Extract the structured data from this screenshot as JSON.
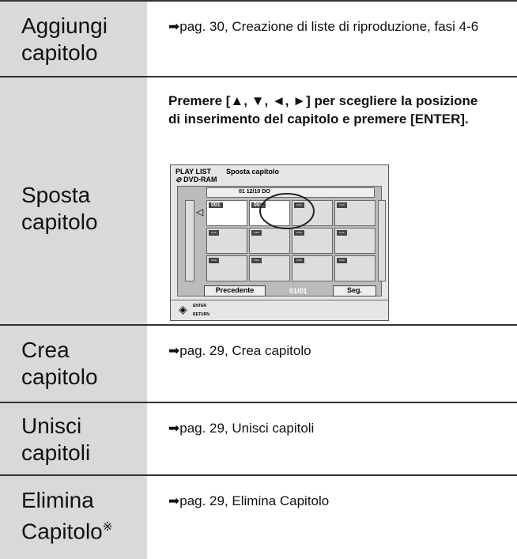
{
  "rows": [
    {
      "label": "Aggiungi capitolo",
      "text": "➡pag. 30, Creazione di liste di riproduzione, fasi 4-6"
    },
    {
      "label": "Sposta capitolo",
      "text": "Premere [▲, ▼, ◄, ►] per scegliere la posizione di inserimento del capitolo e premere [ENTER].",
      "screen": {
        "title": "PLAY LIST",
        "subtitle": "Sposta capitolo",
        "media": "DVD-RAM",
        "date": "01 12/10 DO",
        "cells": [
          "001",
          "002",
          "---",
          "---",
          "---",
          "---",
          "---",
          "---",
          "---",
          "---",
          "---",
          "---"
        ],
        "prev": "Precedente",
        "page": "01/01",
        "next": "Seg.",
        "enter": "ENTER",
        "return": "RETURN"
      }
    },
    {
      "label": "Crea capitolo",
      "text": "➡pag. 29, Crea capitolo"
    },
    {
      "label": "Unisci capitoli",
      "text": "➡pag. 29, Unisci capitoli"
    },
    {
      "label": "Elimina Capitolo",
      "note_mark": "※",
      "text": "➡pag. 29, Elimina Capitolo"
    }
  ]
}
